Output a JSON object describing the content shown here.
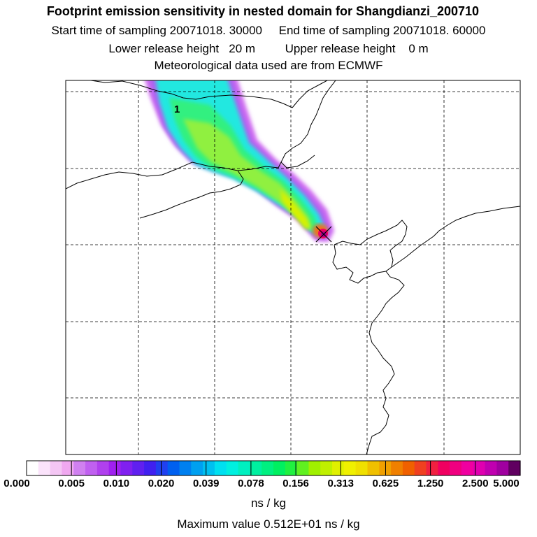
{
  "header": {
    "title": "Footprint emission sensitivity in nested domain for Shangdianzi_200710",
    "sampling_line": "Start time of sampling 20071018. 30000     End time of sampling 20071018. 60000",
    "release_line": "Lower release height   20 m         Upper release height    0 m",
    "met_line": "Meteorological data used are from ECMWF"
  },
  "map": {
    "plume_label": "1",
    "receptor_marker": "x-marker"
  },
  "colorbar": {
    "tick_labels": [
      "0.000",
      "0.005",
      "0.010",
      "0.020",
      "0.039",
      "0.078",
      "0.156",
      "0.313",
      "0.625",
      "1.250",
      "2.500",
      "5.000"
    ],
    "colors": [
      "#ffffff",
      "#fbe3fb",
      "#f4c6f4",
      "#f0a8f0",
      "#d080f0",
      "#c060f0",
      "#b040ee",
      "#a020f0",
      "#8020f0",
      "#6020f0",
      "#4020f0",
      "#2040f0",
      "#0060f0",
      "#0080f0",
      "#00a0f0",
      "#00c0f0",
      "#00e0f0",
      "#00f0e0",
      "#00f0c0",
      "#00f0a0",
      "#00f080",
      "#00f060",
      "#20f040",
      "#60f020",
      "#a0f000",
      "#c0f000",
      "#e0f000",
      "#f0f000",
      "#f0e000",
      "#f0c000",
      "#f0a000",
      "#f08000",
      "#f06000",
      "#f04020",
      "#f02040",
      "#f00060",
      "#f00080",
      "#f000a0",
      "#e000b0",
      "#c000b0",
      "#a000a0",
      "#600060"
    ],
    "unit": "ns / kg"
  },
  "footer": {
    "max_value": "Maximum value  0.512E+01 ns / kg"
  }
}
